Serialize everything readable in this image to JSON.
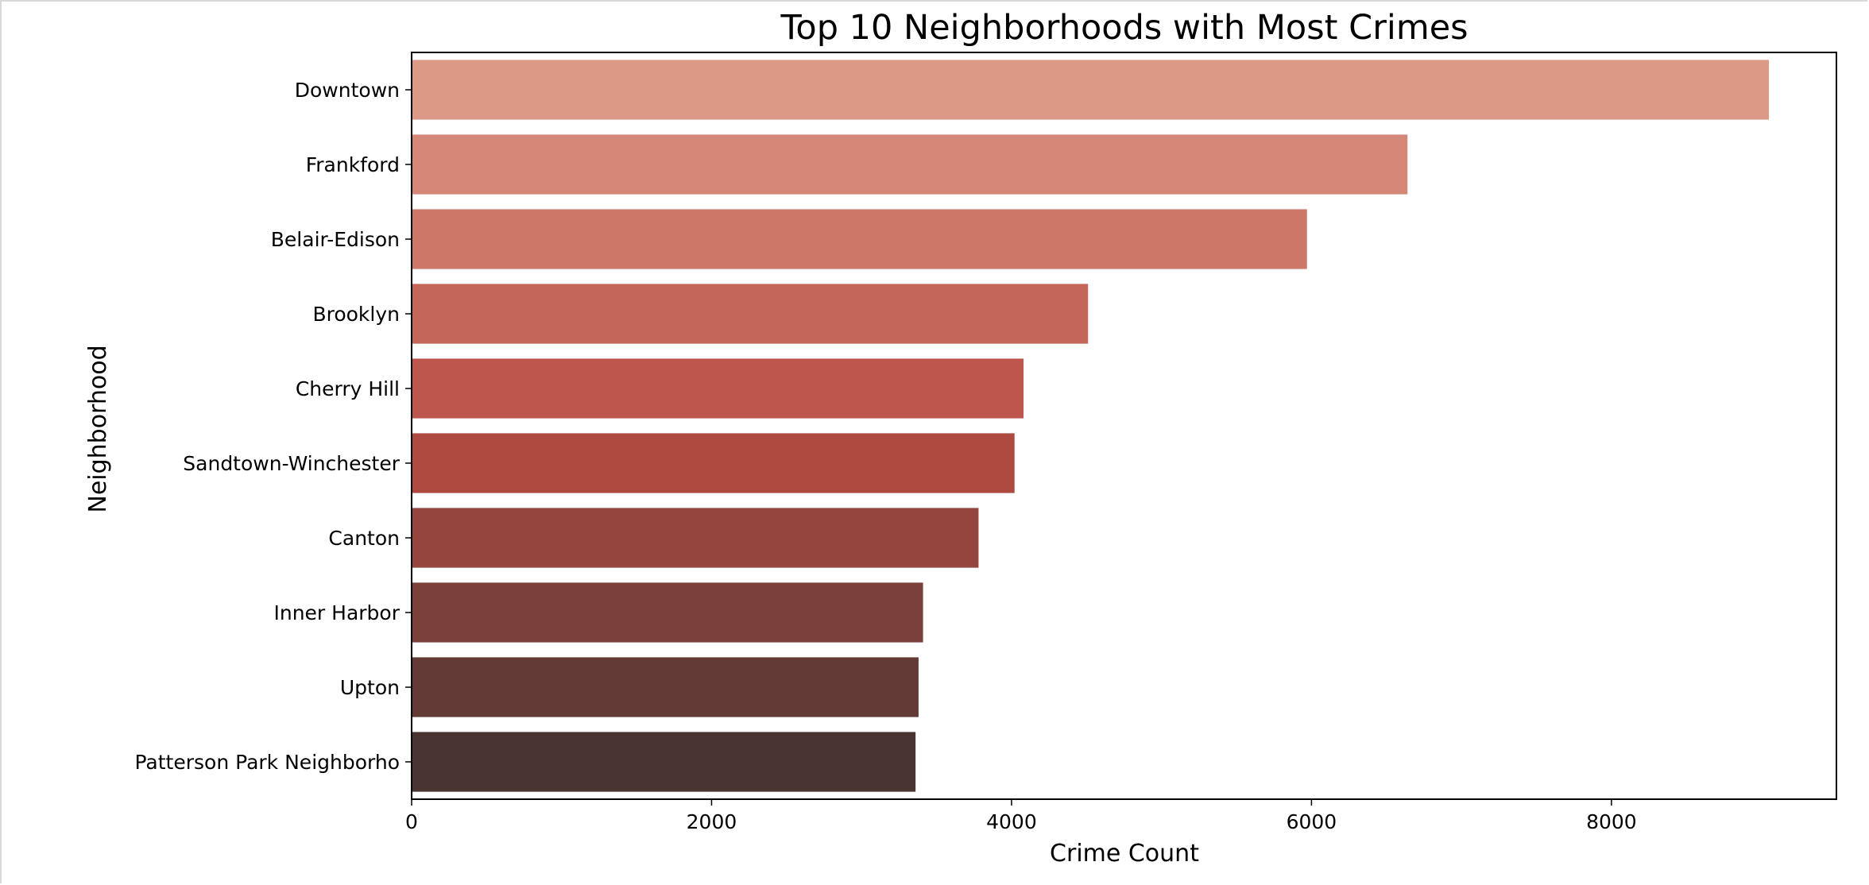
{
  "chart_data": {
    "type": "bar",
    "orientation": "horizontal",
    "title": "Top 10 Neighborhoods with Most Crimes",
    "xlabel": "Crime Count",
    "ylabel": "Neighborhood",
    "xlim": [
      0,
      9500
    ],
    "xticks": [
      0,
      2000,
      4000,
      6000,
      8000
    ],
    "xtick_labels": [
      "0",
      "2000",
      "4000",
      "6000",
      "8000"
    ],
    "categories": [
      "Downtown",
      "Frankford",
      "Belair-Edison",
      "Brooklyn",
      "Cherry Hill",
      "Sandtown-Winchester",
      "Canton",
      "Inner Harbor",
      "Upton",
      "Patterson Park Neighborho"
    ],
    "values": [
      9050,
      6640,
      5970,
      4510,
      4080,
      4020,
      3780,
      3410,
      3380,
      3360
    ],
    "colors": [
      "#dc9a86",
      "#d58877",
      "#cc7767",
      "#c46658",
      "#bd564c",
      "#af4a41",
      "#93453e",
      "#7b403a",
      "#633a36",
      "#4a3432"
    ],
    "grid": false,
    "legend": "none"
  }
}
